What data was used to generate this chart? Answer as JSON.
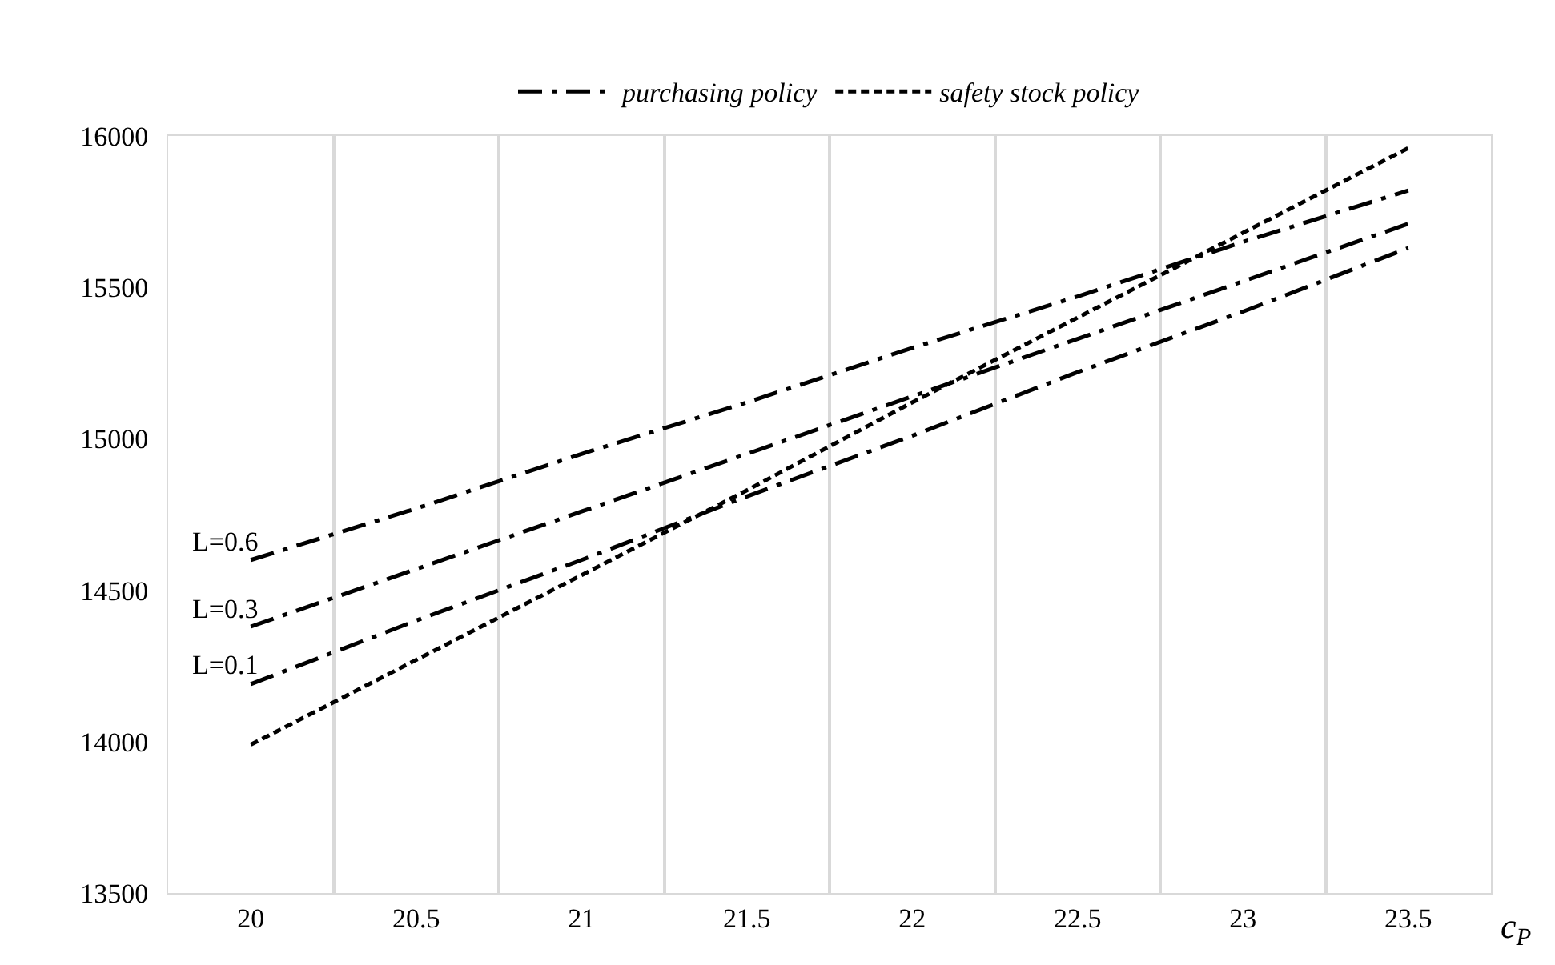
{
  "chart_data": {
    "type": "line",
    "xlabel": "c$_{P}$",
    "categories": [
      "20",
      "20.5",
      "21",
      "21.5",
      "22",
      "22.5",
      "23",
      "23.5"
    ],
    "series": [
      {
        "name": "purchasing policy",
        "color": "#000000",
        "line_style": "dashdot",
        "values": [
          14600,
          14770,
          14950,
          15120,
          15300,
          15470,
          15650,
          15820
        ]
      },
      {
        "color": "#000000",
        "line_style": "dashdot",
        "values": [
          14380,
          14570,
          14760,
          14950,
          15140,
          15330,
          15520,
          15710
        ]
      },
      {
        "color": "#000000",
        "line_style": "dashdot",
        "values": [
          14190,
          14400,
          14600,
          14810,
          15010,
          15220,
          15420,
          15630
        ]
      },
      {
        "name": "safety stock policy",
        "color": "#000000",
        "line_style": "dashed",
        "values": [
          13990,
          14270,
          14550,
          14830,
          15120,
          15400,
          15680,
          15960
        ]
      }
    ],
    "annotations": [
      {
        "text": "L=0.6",
        "x": "20",
        "y": 14600
      },
      {
        "text": "L=0.3",
        "x": "20",
        "y": 14380
      },
      {
        "text": "L=0.1",
        "x": "20",
        "y": 14190
      }
    ],
    "ylim": [
      13500,
      16000
    ],
    "yticks": [
      13500,
      14000,
      14500,
      15000,
      15500,
      16000
    ],
    "grid": "x",
    "legend": "top",
    "marker": "none"
  }
}
